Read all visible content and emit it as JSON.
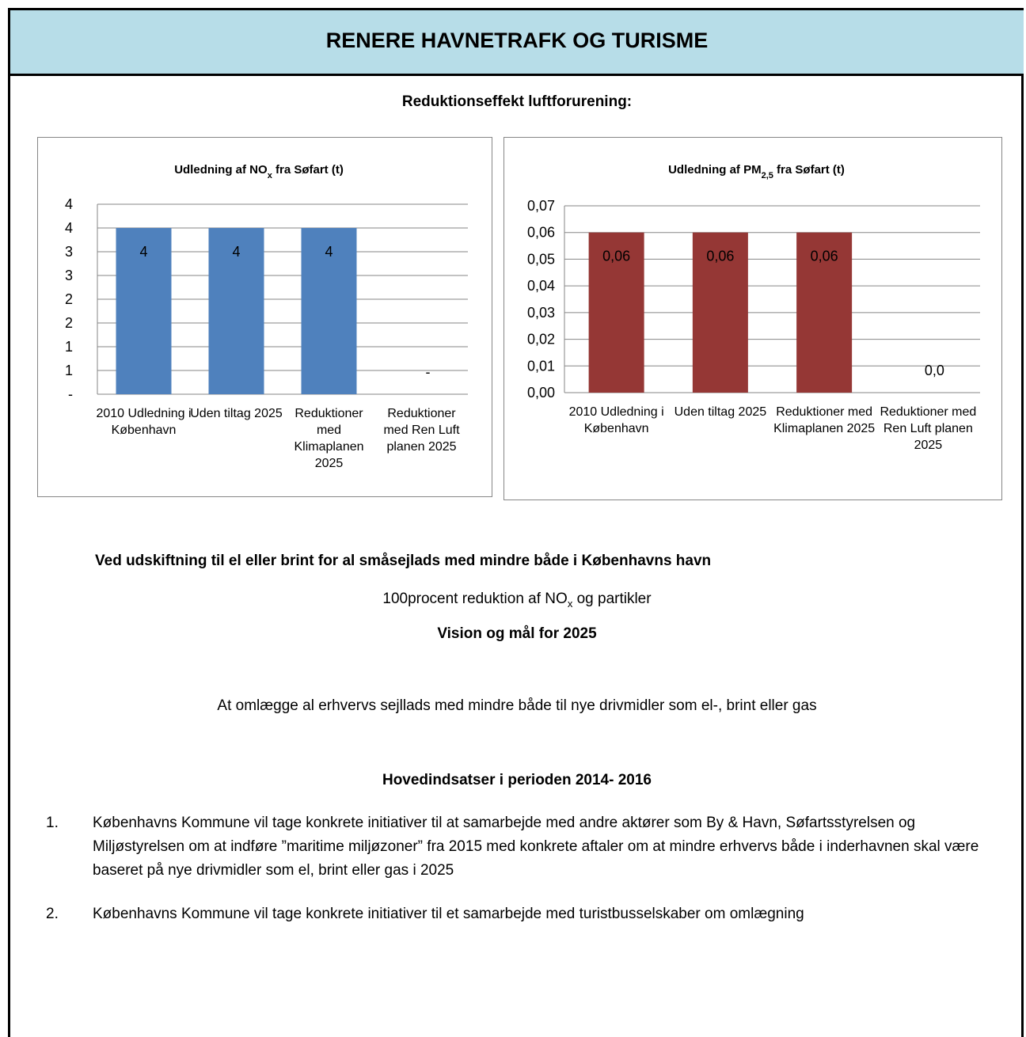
{
  "header": {
    "title": "RENERE HAVNETRAFK OG TURISME"
  },
  "section_title": "Reduktionseffekt luftforurening:",
  "chart_data": [
    {
      "type": "bar",
      "title": {
        "text": "Udledning af NO",
        "sub": "x",
        "rest": " fra Søfart (t)"
      },
      "categories": [
        "2010 Udledning i København",
        "Uden tiltag 2025",
        "Reduktioner med Klimaplanen 2025",
        "Reduktioner med Ren Luft planen 2025"
      ],
      "values": [
        3.5,
        3.5,
        3.5,
        0
      ],
      "value_labels": [
        "4",
        "4",
        "4",
        "-"
      ],
      "color": "#4f81bd",
      "ylim": [
        0,
        4
      ],
      "yticks": [
        {
          "value": 0,
          "label": "-"
        },
        {
          "value": 0.5,
          "label": "1"
        },
        1,
        {
          "value": 1.5,
          "label": "2"
        },
        2,
        {
          "value": 2.5,
          "label": "3"
        },
        3,
        {
          "value": 3.5,
          "label": "4"
        },
        4
      ],
      "grid": true
    },
    {
      "type": "bar",
      "title": {
        "text": "Udledning af PM",
        "sub": "2,5",
        "rest": " fra Søfart (t)"
      },
      "categories": [
        "2010 Udledning i København",
        "Uden tiltag 2025",
        "Reduktioner med Klimaplanen 2025",
        "Reduktioner med Ren Luft planen 2025"
      ],
      "values": [
        0.06,
        0.06,
        0.06,
        0
      ],
      "value_labels": [
        "0,06",
        "0,06",
        "0,06",
        "0,0"
      ],
      "color": "#953735",
      "ylim": [
        0,
        0.07
      ],
      "yticks": [
        {
          "value": 0,
          "label": "0,00"
        },
        {
          "value": 0.01,
          "label": "0,01"
        },
        {
          "value": 0.02,
          "label": "0,02"
        },
        {
          "value": 0.03,
          "label": "0,03"
        },
        {
          "value": 0.04,
          "label": "0,04"
        },
        {
          "value": 0.05,
          "label": "0,05"
        },
        {
          "value": 0.06,
          "label": "0,06"
        },
        {
          "value": 0.07,
          "label": "0,07"
        }
      ],
      "grid": true
    }
  ],
  "statement": "Ved udskiftning til el eller brint for al småsejlads med mindre både i Københavns havn",
  "reduction": {
    "text": "100procent reduktion af NO",
    "sub": "x",
    "rest": " og partikler"
  },
  "vision": {
    "heading": "Vision og mål for 2025",
    "text": "At omlægge al erhvervs sejllads med mindre både til nye drivmidler som el-, brint eller gas"
  },
  "efforts": {
    "heading": "Hovedindsatser i perioden 2014- 2016",
    "items": [
      {
        "number": "1.",
        "text": "Københavns Kommune vil tage konkrete initiativer til at samarbejde med andre aktører som By & Havn, Søfartsstyrelsen og Miljøstyrelsen om at indføre ”maritime miljøzoner” fra 2015 med konkrete aftaler om at mindre erhvervs både i inderhavnen skal være baseret på nye drivmidler som el, brint eller gas i 2025"
      },
      {
        "number": "2.",
        "text": "Københavns Kommune vil tage konkrete initiativer til et samarbejde med turistbusselskaber om omlægning"
      }
    ]
  }
}
